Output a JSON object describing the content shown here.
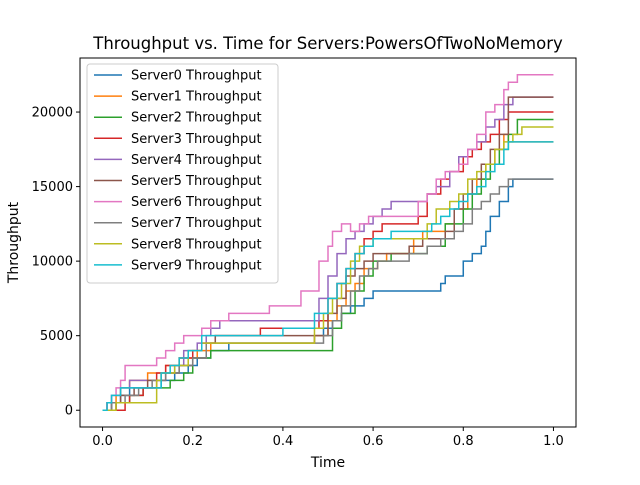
{
  "chart_data": {
    "type": "line",
    "title": "Throughput vs. Time for Servers:PowersOfTwoNoMemory",
    "xlabel": "Time",
    "ylabel": "Throughput",
    "xlim": [
      -0.05,
      1.05
    ],
    "ylim": [
      -1125,
      23625
    ],
    "xticks": [
      0.0,
      0.2,
      0.4,
      0.6,
      0.8,
      1.0
    ],
    "xtick_labels": [
      "0.0",
      "0.2",
      "0.4",
      "0.6",
      "0.8",
      "1.0"
    ],
    "yticks": [
      0,
      5000,
      10000,
      15000,
      20000
    ],
    "ytick_labels": [
      "0",
      "5000",
      "10000",
      "15000",
      "20000"
    ],
    "grid": false,
    "legend_position": "top-left",
    "series": [
      {
        "name": "Server0 Throughput",
        "color": "#1f77b4",
        "x": [
          0.0,
          0.02,
          0.04,
          0.06,
          0.13,
          0.16,
          0.19,
          0.21,
          0.24,
          0.28,
          0.47,
          0.49,
          0.51,
          0.53,
          0.55,
          0.58,
          0.6,
          0.75,
          0.76,
          0.8,
          0.82,
          0.84,
          0.85,
          0.86,
          0.88,
          0.9,
          0.91,
          1.0
        ],
        "y": [
          0,
          500,
          1000,
          1500,
          2000,
          2500,
          3000,
          3500,
          4000,
          4500,
          5000,
          5500,
          6000,
          6500,
          7000,
          7500,
          8000,
          8500,
          9000,
          10000,
          10500,
          11000,
          12000,
          13000,
          14000,
          15000,
          15500,
          15500
        ]
      },
      {
        "name": "Server1 Throughput",
        "color": "#ff7f0e",
        "x": [
          0.0,
          0.01,
          0.03,
          0.04,
          0.06,
          0.1,
          0.14,
          0.17,
          0.21,
          0.24,
          0.47,
          0.5,
          0.52,
          0.54,
          0.56,
          0.58,
          0.61,
          0.63,
          0.69,
          0.71,
          0.76,
          0.78,
          0.81,
          0.83,
          0.85,
          0.87,
          0.89,
          0.9,
          1.0
        ],
        "y": [
          0,
          500,
          1000,
          1500,
          2000,
          2500,
          3000,
          3500,
          4000,
          4500,
          5000,
          6000,
          7000,
          8000,
          8500,
          9500,
          10000,
          10500,
          11500,
          12000,
          12500,
          13500,
          14500,
          15500,
          16500,
          17500,
          18500,
          18000,
          18000
        ]
      },
      {
        "name": "Server2 Throughput",
        "color": "#2ca02c",
        "x": [
          0.0,
          0.03,
          0.06,
          0.09,
          0.15,
          0.18,
          0.2,
          0.24,
          0.48,
          0.51,
          0.53,
          0.56,
          0.58,
          0.6,
          0.64,
          0.72,
          0.76,
          0.8,
          0.82,
          0.84,
          0.86,
          0.88,
          0.9,
          0.92,
          1.0
        ],
        "y": [
          0,
          500,
          1000,
          1500,
          2000,
          2500,
          3500,
          4000,
          4000,
          5500,
          6500,
          8000,
          9000,
          10000,
          10500,
          11000,
          12500,
          13500,
          14500,
          15500,
          16500,
          17500,
          18500,
          19500,
          19500
        ]
      },
      {
        "name": "Server3 Throughput",
        "color": "#d62728",
        "x": [
          0.0,
          0.01,
          0.03,
          0.05,
          0.06,
          0.09,
          0.12,
          0.14,
          0.17,
          0.2,
          0.22,
          0.25,
          0.35,
          0.48,
          0.5,
          0.52,
          0.54,
          0.56,
          0.58,
          0.6,
          0.62,
          0.7,
          0.72,
          0.75,
          0.77,
          0.8,
          0.82,
          0.84,
          0.86,
          0.88,
          0.9,
          1.0
        ],
        "y": [
          0,
          500,
          0,
          500,
          1000,
          1500,
          2500,
          3000,
          3500,
          4000,
          4500,
          5000,
          5500,
          6000,
          7500,
          8500,
          9500,
          10500,
          11500,
          12000,
          12500,
          13000,
          14500,
          15500,
          16000,
          17000,
          17500,
          18000,
          18500,
          19500,
          20000,
          20000
        ]
      },
      {
        "name": "Server4 Throughput",
        "color": "#9467bd",
        "x": [
          0.0,
          0.01,
          0.02,
          0.04,
          0.06,
          0.13,
          0.16,
          0.18,
          0.21,
          0.23,
          0.24,
          0.26,
          0.46,
          0.48,
          0.5,
          0.52,
          0.54,
          0.56,
          0.58,
          0.6,
          0.62,
          0.64,
          0.72,
          0.74,
          0.77,
          0.79,
          0.81,
          0.83,
          0.85,
          0.87,
          0.89,
          0.91,
          1.0
        ],
        "y": [
          0,
          500,
          1000,
          1500,
          2000,
          2500,
          3000,
          4000,
          4500,
          5000,
          5500,
          6000,
          6000,
          7500,
          9000,
          10500,
          11500,
          12000,
          12500,
          13000,
          13500,
          14000,
          14500,
          15000,
          16000,
          17000,
          17500,
          18000,
          19000,
          19500,
          20500,
          21000,
          21000
        ]
      },
      {
        "name": "Server5 Throughput",
        "color": "#8c564b",
        "x": [
          0.0,
          0.02,
          0.04,
          0.07,
          0.1,
          0.14,
          0.17,
          0.2,
          0.23,
          0.25,
          0.48,
          0.5,
          0.52,
          0.54,
          0.56,
          0.58,
          0.6,
          0.68,
          0.71,
          0.76,
          0.78,
          0.8,
          0.82,
          0.84,
          0.86,
          0.88,
          0.9,
          1.0
        ],
        "y": [
          0,
          500,
          1000,
          1500,
          2000,
          2500,
          3000,
          3500,
          4500,
          5000,
          5000,
          6500,
          7500,
          9000,
          9500,
          10000,
          10500,
          11000,
          11500,
          12000,
          13500,
          14500,
          15500,
          16500,
          17500,
          18500,
          21000,
          21000
        ]
      },
      {
        "name": "Server6 Throughput",
        "color": "#e377c2",
        "x": [
          0.0,
          0.01,
          0.02,
          0.03,
          0.04,
          0.05,
          0.12,
          0.14,
          0.16,
          0.18,
          0.22,
          0.24,
          0.25,
          0.28,
          0.37,
          0.44,
          0.48,
          0.5,
          0.51,
          0.53,
          0.55,
          0.57,
          0.59,
          0.6,
          0.7,
          0.72,
          0.74,
          0.76,
          0.79,
          0.81,
          0.83,
          0.85,
          0.87,
          0.89,
          0.9,
          0.92,
          1.0
        ],
        "y": [
          0,
          500,
          1000,
          1500,
          2000,
          3000,
          3500,
          4000,
          4500,
          5000,
          5500,
          6000,
          6000,
          6500,
          7000,
          8000,
          10000,
          11000,
          12000,
          12500,
          12000,
          12500,
          13000,
          13000,
          14000,
          14500,
          15500,
          16000,
          16500,
          17500,
          18500,
          20000,
          20500,
          21500,
          22000,
          22500,
          22500
        ]
      },
      {
        "name": "Server7 Throughput",
        "color": "#7f7f7f",
        "x": [
          0.0,
          0.02,
          0.05,
          0.08,
          0.11,
          0.14,
          0.17,
          0.2,
          0.23,
          0.49,
          0.51,
          0.53,
          0.55,
          0.57,
          0.59,
          0.61,
          0.68,
          0.72,
          0.75,
          0.78,
          0.8,
          0.82,
          0.84,
          0.86,
          0.88,
          0.9,
          1.0
        ],
        "y": [
          0,
          500,
          1000,
          1500,
          2000,
          2500,
          3000,
          3500,
          4500,
          5000,
          6000,
          7000,
          8000,
          9000,
          9500,
          10000,
          10500,
          11000,
          11500,
          12000,
          12500,
          13500,
          14000,
          14500,
          15000,
          15500,
          15500
        ]
      },
      {
        "name": "Server8 Throughput",
        "color": "#bcbd22",
        "x": [
          0.0,
          0.03,
          0.06,
          0.12,
          0.13,
          0.16,
          0.19,
          0.22,
          0.47,
          0.49,
          0.51,
          0.53,
          0.55,
          0.57,
          0.6,
          0.72,
          0.74,
          0.77,
          0.79,
          0.81,
          0.83,
          0.85,
          0.87,
          0.89,
          0.91,
          0.93,
          1.0
        ],
        "y": [
          0,
          500,
          500,
          2000,
          2500,
          3000,
          4000,
          4500,
          5500,
          6500,
          7500,
          8500,
          10000,
          11000,
          11500,
          12500,
          13500,
          14000,
          14500,
          15500,
          16000,
          16500,
          17500,
          18000,
          18500,
          19000,
          19000
        ]
      },
      {
        "name": "Server9 Throughput",
        "color": "#17becf",
        "x": [
          0.0,
          0.01,
          0.02,
          0.04,
          0.06,
          0.13,
          0.15,
          0.17,
          0.19,
          0.22,
          0.4,
          0.47,
          0.5,
          0.52,
          0.54,
          0.56,
          0.58,
          0.6,
          0.64,
          0.73,
          0.75,
          0.77,
          0.79,
          0.81,
          0.83,
          0.85,
          0.87,
          0.89,
          0.9,
          1.0
        ],
        "y": [
          0,
          500,
          1000,
          1500,
          1500,
          2500,
          3000,
          3500,
          4000,
          5000,
          5500,
          6500,
          7500,
          8500,
          9500,
          10500,
          11000,
          11500,
          12000,
          12500,
          13000,
          13500,
          14000,
          14500,
          15000,
          16000,
          16500,
          17500,
          18000,
          18000
        ]
      }
    ]
  }
}
